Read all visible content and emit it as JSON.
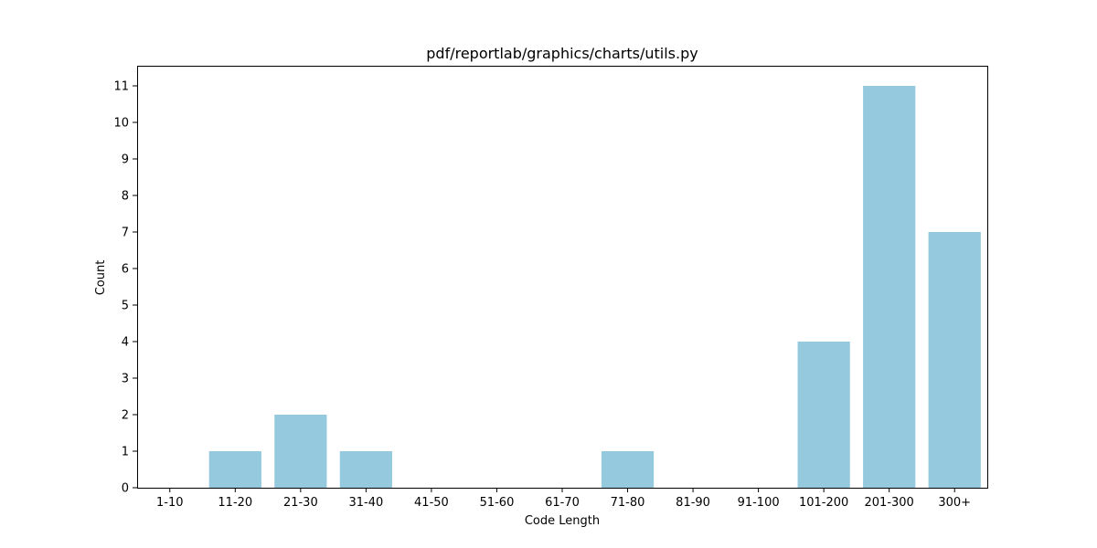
{
  "chart_data": {
    "type": "bar",
    "title": "pdf/reportlab/graphics/charts/utils.py",
    "xlabel": "Code Length",
    "ylabel": "Count",
    "categories": [
      "1-10",
      "11-20",
      "21-30",
      "31-40",
      "41-50",
      "51-60",
      "61-70",
      "71-80",
      "81-90",
      "91-100",
      "101-200",
      "201-300",
      "300+"
    ],
    "values": [
      0,
      1,
      2,
      1,
      0,
      0,
      0,
      1,
      0,
      0,
      4,
      11,
      7
    ],
    "yticks": [
      "0",
      "1",
      "2",
      "3",
      "4",
      "5",
      "6",
      "7",
      "8",
      "9",
      "10",
      "11"
    ],
    "ylim": [
      0,
      11.55
    ],
    "grid": false,
    "bar_color": "#95c9de"
  }
}
